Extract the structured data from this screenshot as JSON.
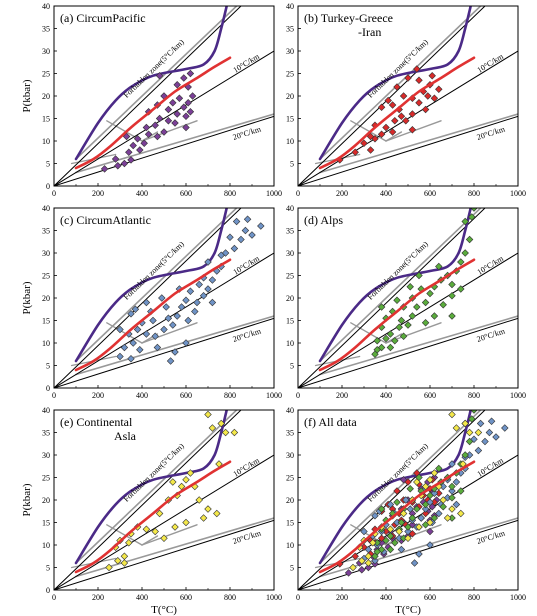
{
  "chart_data": {
    "type": "scatter",
    "axes": {
      "xlim": [
        0,
        1000
      ],
      "ylim": [
        0,
        40
      ],
      "x_ticks": [
        "0",
        "200",
        "400",
        "600",
        "800",
        "1000"
      ],
      "y_ticks": [
        "5",
        "10",
        "15",
        "20",
        "25",
        "30",
        "35",
        "40"
      ],
      "y_ticks_first_column": [
        "0",
        "5",
        "10",
        "15",
        "20",
        "25",
        "30",
        "35",
        "40"
      ],
      "ylabel": "P(kbar)",
      "xlabel": "T(°C)"
    },
    "annotations": {
      "forbidden": "Forbidden zone(5°C/km)",
      "geotherm10": "10°C/km",
      "geotherm20": "20°C/km"
    },
    "colors": {
      "circumpacific": "#7b3f97",
      "turkey": "#d82a2a",
      "circumatlantic": "#6f93c6",
      "alps": "#5aac3c",
      "continental": "#f4e84a",
      "curve_purple": "#4b2a87",
      "curve_red": "#e03232",
      "gray_line": "#999999"
    },
    "reference_lines": {
      "geotherm_5": [
        [
          0,
          0
        ],
        [
          850,
          40
        ]
      ],
      "geotherm_10": [
        [
          0,
          0
        ],
        [
          1000,
          30
        ]
      ],
      "geotherm_20": [
        [
          0,
          0
        ],
        [
          1000,
          15.5
        ]
      ],
      "gray_5": [
        [
          100,
          6
        ],
        [
          830,
          40
        ]
      ],
      "gray_20": [
        [
          100,
          3
        ],
        [
          1000,
          16
        ]
      ],
      "gray_branch_a": [
        [
          240,
          14.5
        ],
        [
          400,
          10
        ]
      ],
      "gray_branch_b": [
        [
          400,
          10
        ],
        [
          470,
          12
        ]
      ],
      "gray_branch_c": [
        [
          400,
          10
        ],
        [
          650,
          14.5
        ]
      ],
      "gray_branch_d": [
        [
          80,
          5
        ],
        [
          280,
          7
        ]
      ],
      "purple_curve": [
        [
          100,
          6
        ],
        [
          200,
          14
        ],
        [
          280,
          19
        ],
        [
          350,
          22
        ],
        [
          450,
          24.5
        ],
        [
          600,
          26
        ],
        [
          680,
          27
        ],
        [
          730,
          30
        ],
        [
          760,
          35
        ],
        [
          785,
          40
        ]
      ],
      "red_curve": [
        [
          100,
          4
        ],
        [
          180,
          6
        ],
        [
          260,
          9
        ],
        [
          350,
          13
        ],
        [
          450,
          17
        ],
        [
          550,
          21
        ],
        [
          650,
          24
        ],
        [
          730,
          26.5
        ],
        [
          800,
          28.5
        ]
      ]
    },
    "panels": [
      {
        "label": "(a) CircumPacific",
        "title_lines": [
          "(a) CircumPacific"
        ],
        "series": [
          {
            "color_key": "circumpacific",
            "points": [
              [
                230,
                3.8
              ],
              [
                290,
                4.5
              ],
              [
                320,
                5.0
              ],
              [
                350,
                5.8
              ],
              [
                340,
                7.5
              ],
              [
                390,
                8.0
              ],
              [
                410,
                9.5
              ],
              [
                380,
                10.5
              ],
              [
                430,
                11.5
              ],
              [
                470,
                11.0
              ],
              [
                500,
                12.0
              ],
              [
                460,
                13.5
              ],
              [
                520,
                14.5
              ],
              [
                480,
                15.0
              ],
              [
                550,
                14.0
              ],
              [
                560,
                16.0
              ],
              [
                430,
                16.5
              ],
              [
                600,
                15.5
              ],
              [
                590,
                17.5
              ],
              [
                620,
                16.5
              ],
              [
                520,
                17.0
              ],
              [
                470,
                18.0
              ],
              [
                540,
                18.5
              ],
              [
                610,
                18.5
              ],
              [
                570,
                19.5
              ],
              [
                630,
                20.0
              ],
              [
                500,
                20.0
              ],
              [
                610,
                22.0
              ],
              [
                560,
                22.5
              ],
              [
                590,
                24.0
              ],
              [
                480,
                24.5
              ],
              [
                620,
                25.0
              ],
              [
                330,
                11.0
              ],
              [
                420,
                13.0
              ],
              [
                280,
                6.0
              ],
              [
                360,
                9.0
              ],
              [
                600,
                13.0
              ]
            ]
          }
        ]
      },
      {
        "label": "(b) Turkey-Greece -Iran",
        "title_lines": [
          "(b) Turkey-Greece",
          "-Iran"
        ],
        "series": [
          {
            "color_key": "turkey",
            "points": [
              [
                190,
                5.8
              ],
              [
                260,
                7.5
              ],
              [
                330,
                8.0
              ],
              [
                350,
                10.5
              ],
              [
                380,
                11.5
              ],
              [
                400,
                13.0
              ],
              [
                430,
                12.0
              ],
              [
                350,
                13.5
              ],
              [
                440,
                14.5
              ],
              [
                470,
                15.5
              ],
              [
                490,
                14.5
              ],
              [
                520,
                16.0
              ],
              [
                380,
                17.5
              ],
              [
                430,
                18.0
              ],
              [
                480,
                20.0
              ],
              [
                520,
                19.5
              ],
              [
                550,
                18.5
              ],
              [
                570,
                21.0
              ],
              [
                590,
                20.0
              ],
              [
                600,
                22.5
              ],
              [
                550,
                23.5
              ],
              [
                500,
                24.0
              ],
              [
                450,
                22.0
              ],
              [
                620,
                19.5
              ],
              [
                540,
                26.0
              ],
              [
                610,
                24.5
              ],
              [
                410,
                19.0
              ],
              [
                330,
                11.0
              ],
              [
                300,
                9.5
              ],
              [
                460,
                17.0
              ],
              [
                580,
                17.0
              ],
              [
                520,
                12.5
              ],
              [
                640,
                21.5
              ]
            ]
          }
        ]
      },
      {
        "label": "(c) CircumAtlantic",
        "title_lines": [
          "(c) CircumAtlantic"
        ],
        "series": [
          {
            "color_key": "circumatlantic",
            "points": [
              [
                300,
                7.0
              ],
              [
                350,
                6.5
              ],
              [
                320,
                9.0
              ],
              [
                360,
                10.0
              ],
              [
                390,
                8.5
              ],
              [
                340,
                12.0
              ],
              [
                380,
                13.0
              ],
              [
                420,
                12.0
              ],
              [
                460,
                11.5
              ],
              [
                500,
                13.0
              ],
              [
                540,
                14.0
              ],
              [
                400,
                14.5
              ],
              [
                450,
                15.0
              ],
              [
                520,
                15.5
              ],
              [
                560,
                16.0
              ],
              [
                610,
                15.0
              ],
              [
                640,
                17.0
              ],
              [
                580,
                18.0
              ],
              [
                600,
                19.5
              ],
              [
                650,
                19.0
              ],
              [
                680,
                20.5
              ],
              [
                700,
                22.0
              ],
              [
                620,
                21.5
              ],
              [
                660,
                23.0
              ],
              [
                720,
                24.0
              ],
              [
                740,
                26.0
              ],
              [
                760,
                27.0
              ],
              [
                700,
                28.0
              ],
              [
                780,
                30.0
              ],
              [
                820,
                31.0
              ],
              [
                850,
                33.0
              ],
              [
                800,
                33.5
              ],
              [
                870,
                35.0
              ],
              [
                900,
                34.0
              ],
              [
                940,
                36.0
              ],
              [
                830,
                37.0
              ],
              [
                880,
                37.5
              ],
              [
                760,
                29.5
              ],
              [
                550,
                8.0
              ],
              [
                600,
                10.0
              ],
              [
                440,
                17.0
              ],
              [
                510,
                18.0
              ],
              [
                490,
                20.0
              ],
              [
                570,
                22.0
              ],
              [
                350,
                16.5
              ],
              [
                370,
                17.5
              ],
              [
                420,
                19.0
              ],
              [
                680,
                24.5
              ],
              [
                720,
                19.0
              ],
              [
                300,
                13.0
              ],
              [
                470,
                9.0
              ],
              [
                530,
                6.0
              ]
            ]
          }
        ]
      },
      {
        "label": "(d) Alps",
        "title_lines": [
          "(d) Alps"
        ],
        "series": [
          {
            "color_key": "alps",
            "points": [
              [
                350,
                7.5
              ],
              [
                380,
                9.0
              ],
              [
                360,
                10.5
              ],
              [
                400,
                11.0
              ],
              [
                420,
                12.0
              ],
              [
                440,
                10.5
              ],
              [
                380,
                13.5
              ],
              [
                460,
                13.5
              ],
              [
                400,
                15.5
              ],
              [
                470,
                15.0
              ],
              [
                500,
                14.0
              ],
              [
                520,
                16.0
              ],
              [
                430,
                17.0
              ],
              [
                480,
                18.0
              ],
              [
                540,
                18.0
              ],
              [
                580,
                19.0
              ],
              [
                520,
                20.0
              ],
              [
                600,
                21.0
              ],
              [
                560,
                22.0
              ],
              [
                620,
                22.5
              ],
              [
                650,
                24.0
              ],
              [
                680,
                25.0
              ],
              [
                700,
                23.0
              ],
              [
                720,
                26.0
              ],
              [
                740,
                28.0
              ],
              [
                760,
                30.0
              ],
              [
                780,
                33.0
              ],
              [
                760,
                37.0
              ],
              [
                790,
                38.0
              ],
              [
                800,
                40.0
              ],
              [
                620,
                16.0
              ],
              [
                660,
                18.5
              ],
              [
                700,
                20.5
              ],
              [
                580,
                14.5
              ],
              [
                360,
                8.5
              ],
              [
                450,
                19.5
              ],
              [
                510,
                22.5
              ],
              [
                550,
                25.0
              ],
              [
                640,
                27.0
              ],
              [
                700,
                16.0
              ],
              [
                740,
                22.0
              ],
              [
                380,
                18.0
              ],
              [
                420,
                9.0
              ],
              [
                480,
                11.5
              ]
            ]
          }
        ]
      },
      {
        "label": "(e) Continental Asla",
        "title_lines": [
          "(e) Continental",
          "Asla"
        ],
        "series": [
          {
            "color_key": "continental",
            "points": [
              [
                250,
                5.0
              ],
              [
                290,
                6.5
              ],
              [
                320,
                7.5
              ],
              [
                280,
                9.5
              ],
              [
                340,
                10.5
              ],
              [
                300,
                11.0
              ],
              [
                350,
                12.5
              ],
              [
                380,
                14.0
              ],
              [
                460,
                13.0
              ],
              [
                500,
                11.5
              ],
              [
                550,
                14.0
              ],
              [
                600,
                15.0
              ],
              [
                480,
                17.0
              ],
              [
                520,
                20.0
              ],
              [
                560,
                21.0
              ],
              [
                580,
                23.0
              ],
              [
                600,
                24.5
              ],
              [
                640,
                23.0
              ],
              [
                660,
                20.0
              ],
              [
                700,
                18.0
              ],
              [
                740,
                17.0
              ],
              [
                720,
                36.0
              ],
              [
                760,
                37.0
              ],
              [
                780,
                35.0
              ],
              [
                700,
                39.0
              ],
              [
                820,
                35.0
              ],
              [
                620,
                26.0
              ],
              [
                680,
                16.0
              ],
              [
                750,
                28.0
              ],
              [
                540,
                24.0
              ],
              [
                420,
                13.5
              ],
              [
                320,
                6.0
              ]
            ]
          }
        ]
      },
      {
        "label": "(f) All data",
        "title_lines": [
          "(f) All data"
        ],
        "includes_all_panels": true,
        "series": []
      }
    ]
  }
}
